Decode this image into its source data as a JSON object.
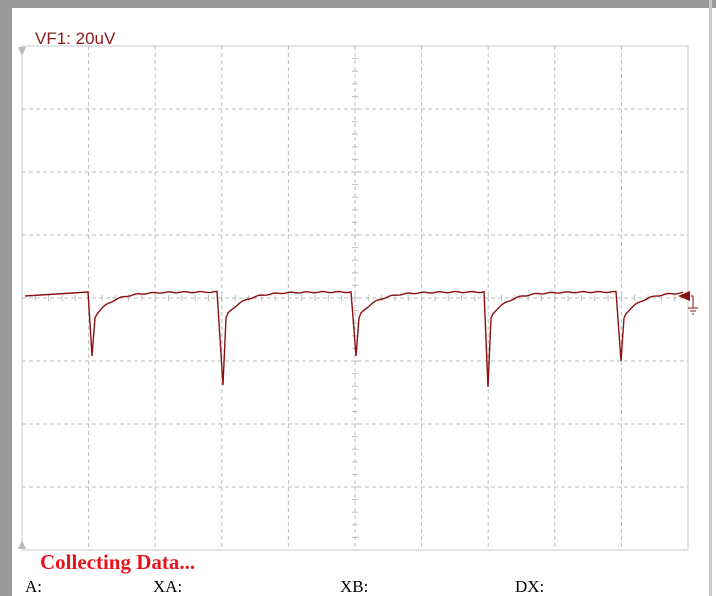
{
  "channel_label": "VF1: 20uV",
  "status": "Collecting Data...",
  "cursors": {
    "a": "A:",
    "xa": "XA:",
    "xb": "XB:",
    "dx": "DX:"
  }
}
